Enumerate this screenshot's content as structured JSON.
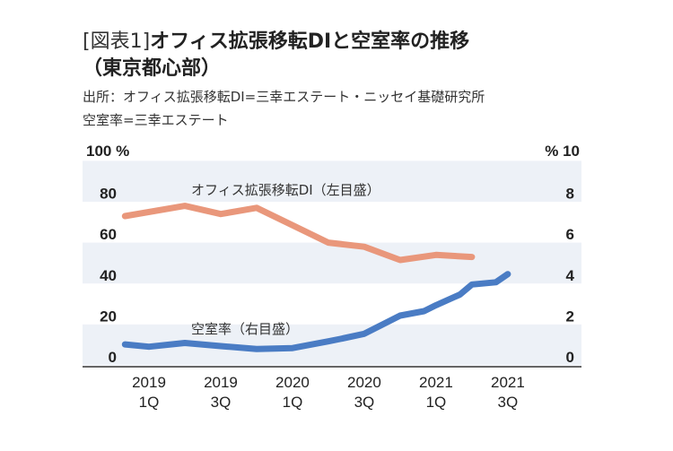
{
  "title": {
    "prefix": "[図表1]",
    "main": "オフィス拡張移転DIと空室率の推移",
    "line2": "（東京都心部）"
  },
  "source": {
    "line1": "出所：オフィス拡張移転DI=三幸エステート・ニッセイ基礎研究所",
    "line2": "空室率=三幸エステート"
  },
  "chart_data": {
    "type": "line",
    "left_axis": {
      "unit_label": "100 %",
      "ticks": [
        "80",
        "60",
        "40",
        "20",
        "0"
      ],
      "range": [
        0,
        100
      ]
    },
    "right_axis": {
      "unit_label": "% 10",
      "ticks": [
        "8",
        "6",
        "4",
        "2",
        "0"
      ],
      "range": [
        0,
        10
      ]
    },
    "x_ticks": [
      {
        "x": "2019-02",
        "year": "2019",
        "q": "1Q"
      },
      {
        "x": "2019-08",
        "year": "2019",
        "q": "3Q"
      },
      {
        "x": "2020-02",
        "year": "2020",
        "q": "1Q"
      },
      {
        "x": "2020-08",
        "year": "2020",
        "q": "3Q"
      },
      {
        "x": "2021-02",
        "year": "2021",
        "q": "1Q"
      },
      {
        "x": "2021-08",
        "year": "2021",
        "q": "3Q"
      }
    ],
    "grid": "alternating horizontal bands",
    "series": [
      {
        "name": "オフィス拡張移転DI（左目盛）",
        "axis": "left",
        "color": "#E9977B",
        "x": [
          "2018-12",
          "2019-05",
          "2019-08",
          "2019-11",
          "2020-05",
          "2020-08",
          "2020-11",
          "2021-02",
          "2021-05"
        ],
        "values": [
          68,
          73,
          69,
          72,
          55,
          53,
          46.5,
          49,
          48
        ]
      },
      {
        "name": "空室率（右目盛）",
        "axis": "right",
        "color": "#4A7CC4",
        "x": [
          "2018-12",
          "2019-02",
          "2019-05",
          "2019-08",
          "2019-11",
          "2020-02",
          "2020-05",
          "2020-06",
          "2020-08",
          "2020-11",
          "2021-01",
          "2021-02",
          "2021-04",
          "2021-05",
          "2021-07",
          "2021-08"
        ],
        "values": [
          0.52,
          0.41,
          0.59,
          0.44,
          0.3,
          0.34,
          0.67,
          0.79,
          1.04,
          1.93,
          2.15,
          2.44,
          2.96,
          3.45,
          3.56,
          3.96
        ]
      }
    ]
  }
}
